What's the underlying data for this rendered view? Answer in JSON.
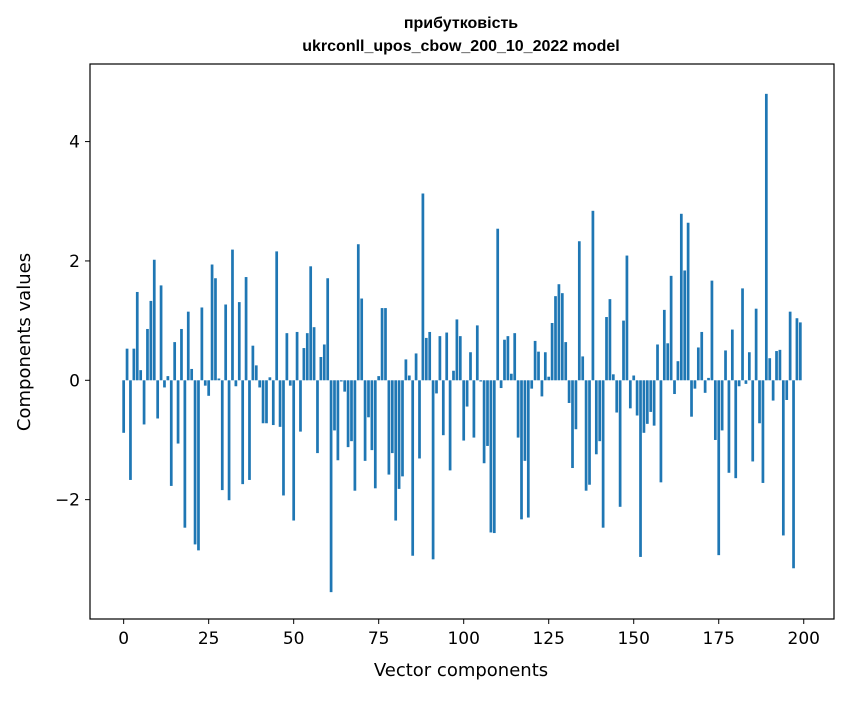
{
  "chart_data": {
    "type": "bar",
    "title_line1": "прибутковість",
    "title_line2": "ukrconll_upos_cbow_200_10_2022 model",
    "xlabel": "Vector components",
    "ylabel": "Components values",
    "xlim": [
      -9.9,
      208.9
    ],
    "ylim": [
      -4.0,
      5.3
    ],
    "xticks": [
      0,
      25,
      50,
      75,
      100,
      125,
      150,
      175,
      200
    ],
    "yticks": [
      -2,
      0,
      2,
      4
    ],
    "ytick_labels": [
      "−2",
      "0",
      "2",
      "4"
    ],
    "bar_color": "#1f77b4",
    "grid": false,
    "values": [
      -0.88,
      0.53,
      -1.67,
      0.53,
      1.48,
      0.17,
      -0.74,
      0.86,
      1.33,
      2.02,
      -0.64,
      1.59,
      -0.12,
      0.07,
      -1.77,
      0.64,
      -1.06,
      0.86,
      -2.47,
      1.15,
      0.19,
      -2.75,
      -2.85,
      1.22,
      -0.09,
      -0.26,
      1.94,
      1.71,
      0.03,
      -1.84,
      1.27,
      -2.01,
      2.19,
      -0.1,
      1.31,
      -1.74,
      1.73,
      -1.67,
      0.58,
      0.25,
      -0.12,
      -0.72,
      -0.72,
      0.05,
      -0.75,
      2.16,
      -0.78,
      -1.93,
      0.79,
      -0.09,
      -2.35,
      0.81,
      -0.86,
      0.54,
      0.79,
      1.91,
      0.89,
      -1.22,
      0.39,
      0.6,
      1.71,
      -3.55,
      -0.84,
      -1.34,
      -0.02,
      -0.19,
      -1.12,
      -1.02,
      -1.85,
      2.28,
      1.37,
      -1.35,
      -0.62,
      -1.17,
      -1.81,
      0.07,
      1.21,
      1.21,
      -1.58,
      -1.22,
      -2.35,
      -1.82,
      -1.61,
      0.35,
      0.08,
      -2.94,
      0.45,
      -1.31,
      3.13,
      0.71,
      0.81,
      -3.0,
      -0.22,
      0.74,
      -0.92,
      0.8,
      -1.51,
      0.16,
      1.02,
      0.74,
      -1.01,
      -0.44,
      0.47,
      -0.96,
      0.92,
      -0.02,
      -1.39,
      -1.1,
      -2.55,
      -2.56,
      2.54,
      -0.13,
      0.68,
      0.74,
      0.11,
      0.79,
      -0.96,
      -2.33,
      -1.35,
      -2.3,
      -0.14,
      0.66,
      0.48,
      -0.27,
      0.47,
      0.06,
      0.96,
      1.41,
      1.61,
      1.46,
      0.64,
      -0.38,
      -1.47,
      -0.82,
      2.33,
      0.4,
      -1.85,
      -1.75,
      2.84,
      -1.24,
      -1.02,
      -2.47,
      1.06,
      1.36,
      0.1,
      -0.54,
      -2.12,
      1.0,
      2.09,
      -0.47,
      0.08,
      -0.59,
      -2.96,
      -0.88,
      -0.73,
      -0.53,
      -0.76,
      0.6,
      -1.71,
      1.18,
      0.62,
      1.75,
      -0.23,
      0.32,
      2.79,
      1.84,
      2.64,
      -0.61,
      -0.14,
      0.55,
      0.81,
      -0.21,
      0.04,
      1.67,
      -1.0,
      -2.93,
      -0.84,
      0.5,
      -1.55,
      0.85,
      -1.64,
      -0.1,
      1.54,
      -0.06,
      0.47,
      -1.36,
      1.2,
      -0.72,
      -1.72,
      4.8,
      0.37,
      -0.34,
      0.49,
      0.51,
      -2.6,
      -0.33,
      1.15,
      -3.15,
      1.04,
      0.97
    ]
  }
}
